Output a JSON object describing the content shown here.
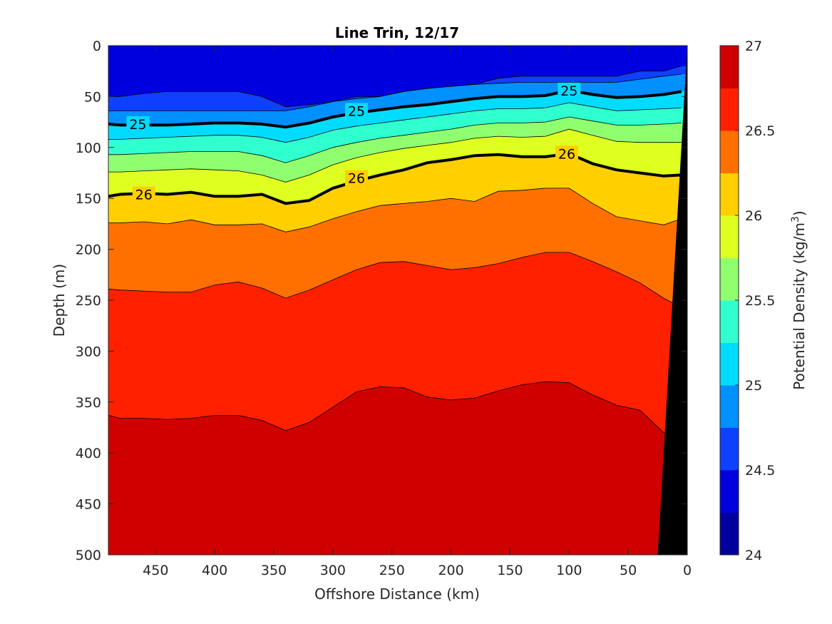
{
  "chart_data": {
    "type": "filled-contour",
    "title": "Line Trin, 12/17",
    "xlabel": "Offshore Distance (km)",
    "ylabel": "Depth (m)",
    "xlim": [
      490,
      0
    ],
    "x_reversed": true,
    "ylim": [
      0,
      500
    ],
    "y_reversed": true,
    "xticks": [
      "450",
      "400",
      "350",
      "300",
      "250",
      "200",
      "150",
      "100",
      "50",
      "0"
    ],
    "yticks": [
      "0",
      "50",
      "100",
      "150",
      "200",
      "250",
      "300",
      "350",
      "400",
      "450",
      "500"
    ],
    "colorbar": {
      "label_main": "Potential Density (kg/m",
      "label_sup": "3",
      "label_end": ")",
      "range": [
        24,
        27
      ],
      "ticks": [
        "24",
        "24.5",
        "25",
        "25.5",
        "26",
        "26.5",
        "27"
      ],
      "levels": [
        24,
        24.25,
        24.5,
        24.75,
        25,
        25.25,
        25.5,
        25.75,
        26,
        26.25,
        26.5,
        26.75,
        27
      ],
      "colors": [
        "#00009f",
        "#0000df",
        "#1040ff",
        "#0090ff",
        "#00dcff",
        "#30ffcf",
        "#8fff6f",
        "#dfff20",
        "#ffcf00",
        "#ff7000",
        "#ff2000",
        "#cf0000"
      ]
    },
    "contour_labels": [
      "25",
      "25",
      "25",
      "26",
      "26",
      "26"
    ],
    "isolines": [
      {
        "level": 24.5,
        "x": [
          490,
          480,
          460,
          440,
          420,
          400,
          380,
          360,
          340,
          320,
          300,
          280,
          260,
          240,
          220,
          200,
          180,
          160,
          140,
          120,
          100,
          80,
          60,
          40,
          20,
          5
        ],
        "y": [
          50,
          50,
          47,
          45,
          45,
          45,
          45,
          50,
          60,
          58,
          55,
          50,
          50,
          45,
          42,
          40,
          38,
          32,
          30,
          30,
          30,
          30,
          30,
          25,
          25,
          20
        ]
      },
      {
        "level": 24.75,
        "x": [
          490,
          480,
          460,
          440,
          420,
          400,
          380,
          360,
          340,
          320,
          300,
          280,
          260,
          240,
          220,
          200,
          180,
          160,
          140,
          120,
          100,
          80,
          60,
          40,
          20,
          5
        ],
        "y": [
          64,
          64,
          64,
          64,
          64,
          64,
          64,
          64,
          64,
          60,
          55,
          52,
          50,
          45,
          42,
          40,
          38,
          37,
          36,
          36,
          36,
          36,
          36,
          33,
          30,
          28
        ]
      },
      {
        "level": 25,
        "x": [
          490,
          480,
          460,
          440,
          420,
          400,
          380,
          360,
          340,
          320,
          300,
          280,
          260,
          240,
          220,
          200,
          180,
          160,
          140,
          120,
          100,
          80,
          60,
          40,
          20,
          5
        ],
        "y": [
          77,
          78,
          78,
          78,
          77,
          76,
          76,
          77,
          80,
          76,
          70,
          66,
          63,
          60,
          58,
          55,
          52,
          50,
          50,
          49,
          44,
          48,
          51,
          50,
          48,
          45
        ]
      },
      {
        "level": 25.25,
        "x": [
          490,
          480,
          460,
          440,
          420,
          400,
          380,
          360,
          340,
          320,
          300,
          280,
          260,
          240,
          220,
          200,
          180,
          160,
          140,
          120,
          100,
          80,
          60,
          40,
          20,
          5
        ],
        "y": [
          92,
          92,
          91,
          90,
          89,
          88,
          88,
          90,
          95,
          90,
          83,
          79,
          76,
          73,
          70,
          67,
          64,
          62,
          62,
          61,
          56,
          60,
          64,
          63,
          62,
          61
        ]
      },
      {
        "level": 25.5,
        "x": [
          490,
          480,
          460,
          440,
          420,
          400,
          380,
          360,
          340,
          320,
          300,
          280,
          260,
          240,
          220,
          200,
          180,
          160,
          140,
          120,
          100,
          80,
          60,
          40,
          20,
          5
        ],
        "y": [
          107,
          107,
          106,
          105,
          104,
          104,
          104,
          108,
          115,
          108,
          100,
          95,
          91,
          88,
          85,
          82,
          78,
          76,
          76,
          75,
          70,
          74,
          78,
          78,
          77,
          76
        ]
      },
      {
        "level": 25.75,
        "x": [
          490,
          480,
          460,
          440,
          420,
          400,
          380,
          360,
          340,
          320,
          300,
          280,
          260,
          240,
          220,
          200,
          180,
          160,
          140,
          120,
          100,
          80,
          60,
          40,
          20,
          5
        ],
        "y": [
          124,
          124,
          123,
          122,
          121,
          122,
          123,
          127,
          134,
          127,
          117,
          110,
          105,
          101,
          98,
          95,
          91,
          89,
          90,
          89,
          82,
          88,
          94,
          95,
          95,
          95
        ]
      },
      {
        "level": 26,
        "x": [
          490,
          480,
          460,
          440,
          420,
          400,
          380,
          360,
          340,
          320,
          300,
          280,
          260,
          240,
          220,
          200,
          180,
          160,
          140,
          120,
          100,
          80,
          60,
          40,
          20,
          5
        ],
        "y": [
          148,
          146,
          145,
          146,
          144,
          148,
          148,
          146,
          155,
          152,
          140,
          133,
          127,
          122,
          115,
          112,
          108,
          107,
          109,
          109,
          106,
          116,
          122,
          125,
          128,
          127
        ]
      },
      {
        "level": 26.25,
        "x": [
          490,
          480,
          460,
          440,
          420,
          400,
          380,
          360,
          340,
          320,
          300,
          280,
          260,
          240,
          220,
          200,
          180,
          160,
          140,
          120,
          100,
          80,
          60,
          40,
          20,
          5
        ],
        "y": [
          174,
          174,
          173,
          175,
          171,
          176,
          176,
          175,
          183,
          178,
          170,
          163,
          157,
          155,
          153,
          150,
          153,
          143,
          142,
          140,
          140,
          155,
          168,
          172,
          176,
          170
        ]
      },
      {
        "level": 26.5,
        "x": [
          490,
          480,
          460,
          440,
          420,
          400,
          380,
          360,
          340,
          320,
          300,
          280,
          260,
          240,
          220,
          200,
          180,
          160,
          140,
          120,
          100,
          80,
          60,
          40,
          20,
          5
        ],
        "y": [
          239,
          240,
          241,
          242,
          242,
          235,
          232,
          238,
          248,
          240,
          230,
          220,
          213,
          212,
          216,
          220,
          218,
          214,
          208,
          203,
          203,
          212,
          222,
          233,
          248,
          257
        ]
      },
      {
        "level": 26.75,
        "x": [
          490,
          480,
          460,
          440,
          420,
          400,
          380,
          360,
          340,
          320,
          300,
          280,
          260,
          240,
          220,
          200,
          180,
          160,
          140,
          120,
          100,
          80,
          60,
          40,
          20,
          5
        ],
        "y": [
          363,
          366,
          366,
          367,
          366,
          363,
          363,
          368,
          378,
          370,
          355,
          340,
          335,
          336,
          345,
          348,
          346,
          339,
          333,
          330,
          331,
          343,
          353,
          358,
          380,
          385
        ]
      }
    ],
    "topography_x": [
      0,
      25
    ],
    "topography_depth": [
      0,
      500
    ]
  }
}
